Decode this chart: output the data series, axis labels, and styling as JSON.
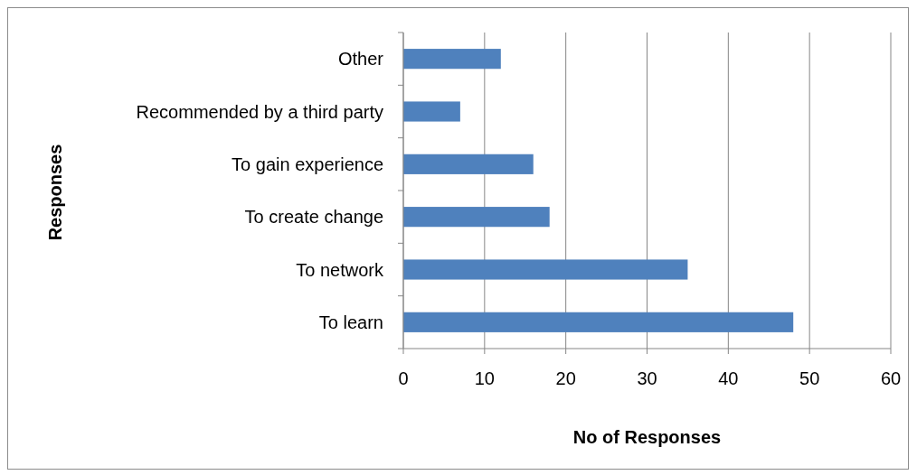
{
  "chart_data": {
    "type": "bar",
    "orientation": "horizontal",
    "xlabel": "No of Responses",
    "ylabel": "Responses",
    "categories": [
      "Other",
      "Recommended by a third party",
      "To gain experience",
      "To create change",
      "To network",
      "To learn"
    ],
    "values": [
      12,
      7,
      16,
      18,
      35,
      48
    ],
    "color": "#4f81bd",
    "xlim": [
      0,
      60
    ],
    "xticks": [
      0,
      10,
      20,
      30,
      40,
      50,
      60
    ],
    "grid": "x"
  }
}
